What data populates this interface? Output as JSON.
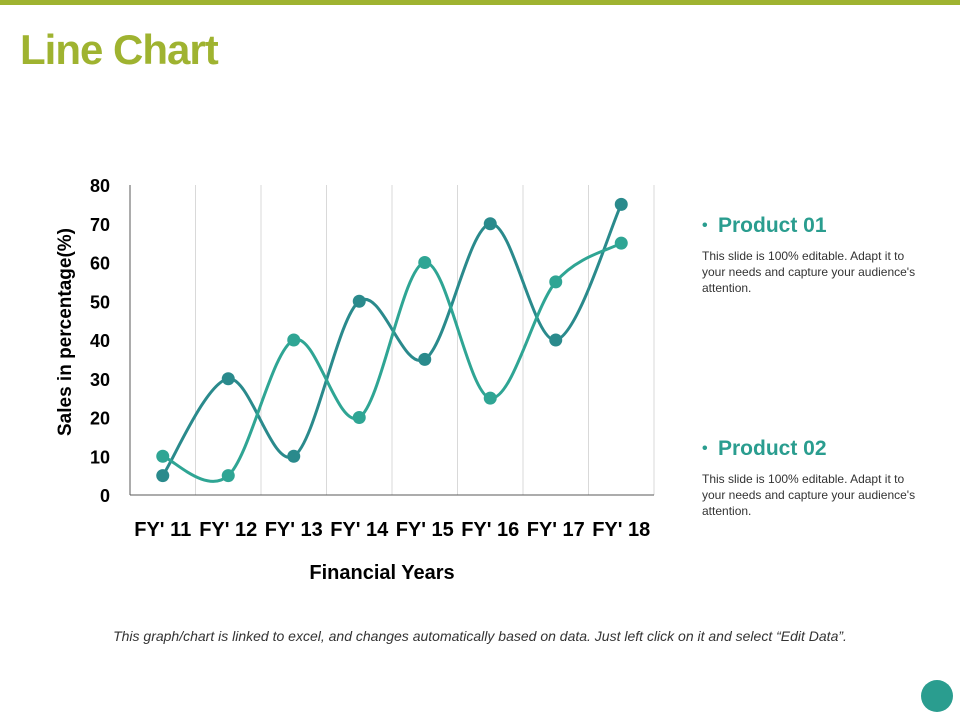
{
  "slide": {
    "title": "Line Chart",
    "footnote": "This graph/chart is linked to excel, and changes automatically based on data. Just left click on it and select “Edit Data”.",
    "accent_color": "#9fb330",
    "dot_color": "#2a9d8f"
  },
  "legend": [
    {
      "title": "Product 01",
      "description": "This slide is 100% editable. Adapt it to your needs and capture your audience's attention.",
      "color": "#2a9d8f"
    },
    {
      "title": "Product 02",
      "description": "This slide is 100% editable. Adapt it to your needs and capture your audience's attention.",
      "color": "#2a9d8f"
    }
  ],
  "chart_data": {
    "type": "line",
    "categories": [
      "FY' 11",
      "FY' 12",
      "FY' 13",
      "FY' 14",
      "FY' 15",
      "FY' 16",
      "FY' 17",
      "FY' 18"
    ],
    "series": [
      {
        "values": [
          5,
          30,
          10,
          50,
          35,
          70,
          40,
          75
        ],
        "color": "#2a8a8c"
      },
      {
        "values": [
          10,
          5,
          40,
          20,
          60,
          25,
          55,
          65
        ],
        "color": "#2fa594"
      }
    ],
    "xlabel": "Financial Years",
    "ylabel": "Sales in percentage(%)",
    "ylim": [
      0,
      80
    ],
    "yticks": [
      0,
      10,
      20,
      30,
      40,
      50,
      60,
      70,
      80
    ],
    "grid": "vertical",
    "smooth": true
  }
}
